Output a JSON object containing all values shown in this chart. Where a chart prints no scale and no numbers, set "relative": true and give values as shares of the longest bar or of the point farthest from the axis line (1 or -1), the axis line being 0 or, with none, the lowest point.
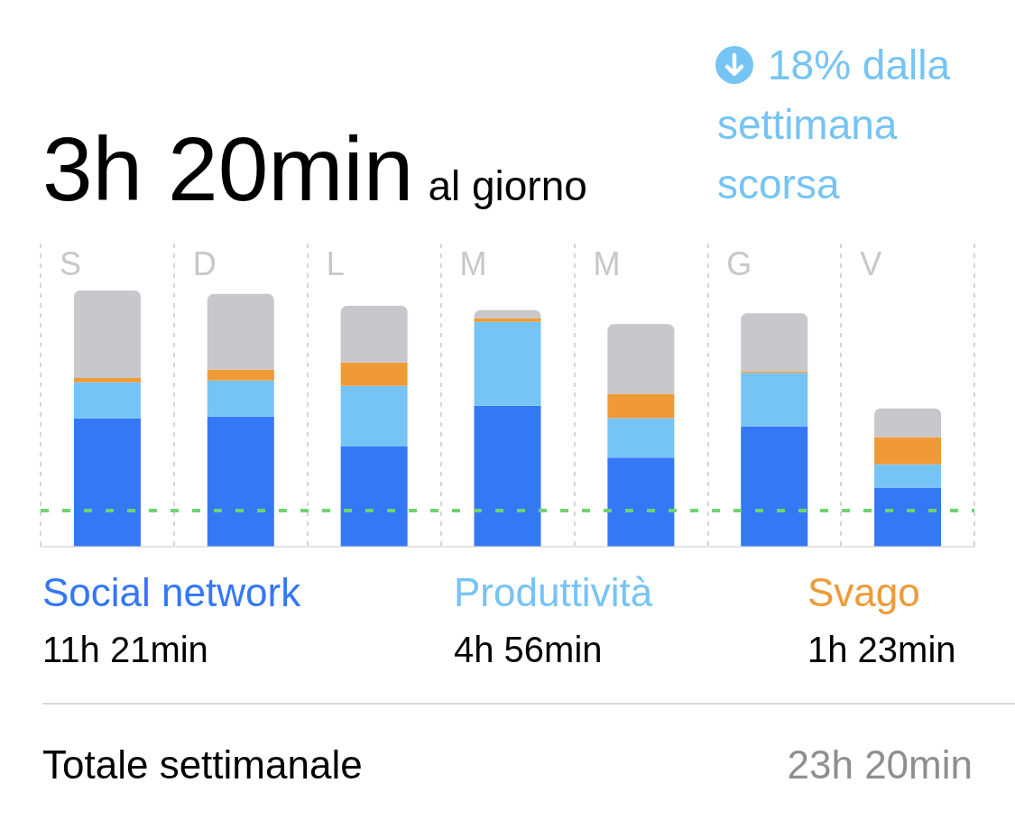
{
  "chart_data": {
    "type": "bar",
    "title": "3h 20min",
    "subtitle": "al giorno",
    "categories": [
      "S",
      "D",
      "L",
      "M",
      "M",
      "G",
      "V"
    ],
    "stacked": true,
    "relative": true,
    "series": [
      {
        "name": "Social network",
        "color": "#3478f6",
        "values": [
          0.5,
          0.507,
          0.39,
          0.549,
          0.346,
          0.469,
          0.229
        ]
      },
      {
        "name": "Produttività",
        "color": "#76c4f5",
        "values": [
          0.141,
          0.141,
          0.237,
          0.328,
          0.155,
          0.209,
          0.091
        ]
      },
      {
        "name": "Svago",
        "color": "#f09a37",
        "values": [
          0.017,
          0.042,
          0.091,
          0.014,
          0.095,
          0.006,
          0.107
        ]
      },
      {
        "color": "#c7c7cc",
        "values": [
          0.342,
          0.296,
          0.222,
          0.032,
          0.272,
          0.227,
          0.112
        ]
      }
    ],
    "ref_lines": [
      {
        "axis": "y",
        "value": 0.143,
        "color": "#6fd36f",
        "line_style": "dashed"
      }
    ],
    "annotations": [
      "18% dalla settimana scorsa",
      "11h 21min",
      "4h 56min",
      "1h 23min",
      "Totale settimanale",
      "23h 20min"
    ],
    "legend": "bottom",
    "grid": "x"
  }
}
